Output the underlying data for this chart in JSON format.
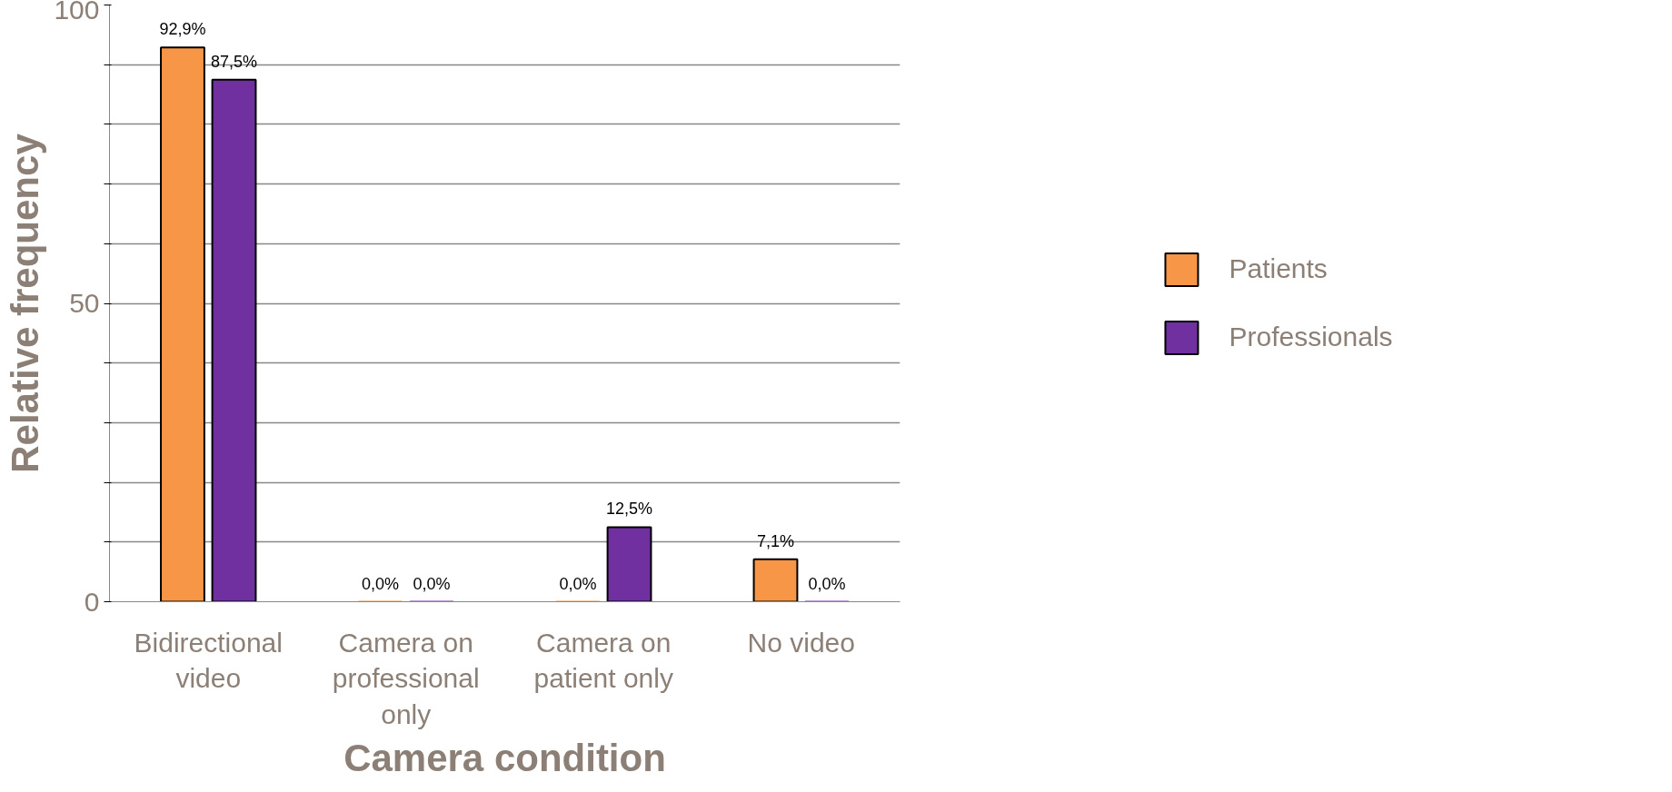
{
  "chart_data": {
    "type": "bar",
    "xlabel": "Camera condition",
    "ylabel": "Relative frequency",
    "categories": [
      "Bidirectional video",
      "Camera on professional only",
      "Camera on patient only",
      "No video"
    ],
    "series": [
      {
        "name": "Patients",
        "color": "#f79646",
        "values": [
          92.9,
          0,
          0,
          7.1
        ],
        "value_labels": [
          "92,9%",
          "0,0%",
          "0,0%",
          "7,1%"
        ]
      },
      {
        "name": "Professionals",
        "color": "#7030a0",
        "values": [
          87.5,
          0,
          12.5,
          0
        ],
        "value_labels": [
          "87,5%",
          "0,0%",
          "12,5%",
          "0,0%"
        ]
      }
    ],
    "ylim": [
      0,
      100
    ],
    "yticks": [
      0,
      {
        "value": 10,
        "label": null
      },
      {
        "value": 20,
        "label": null
      },
      {
        "value": 30,
        "label": null
      },
      {
        "value": 40,
        "label": null
      },
      50,
      {
        "value": 60,
        "label": null
      },
      {
        "value": 70,
        "label": null
      },
      {
        "value": 80,
        "label": null
      },
      {
        "value": 90,
        "label": null
      },
      100
    ],
    "grid": "y",
    "legend": "right"
  }
}
